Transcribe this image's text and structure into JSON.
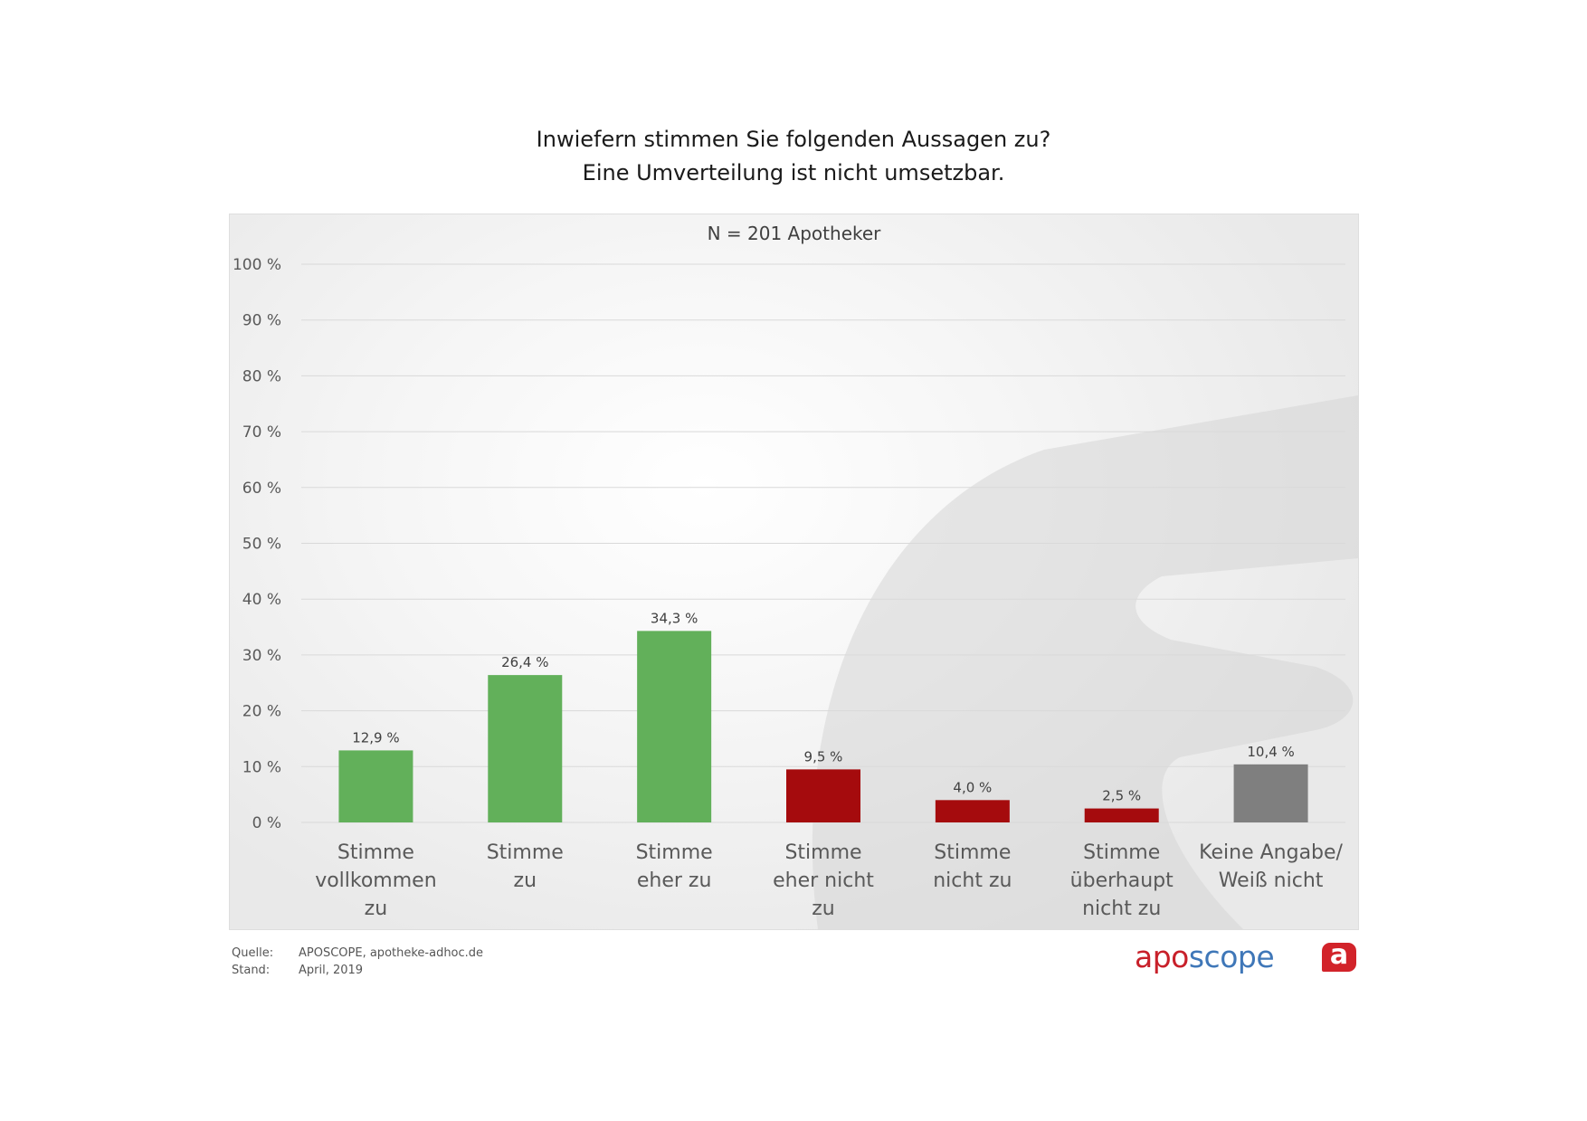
{
  "page": {
    "title_line1": "Inwiefern stimmen Sie folgenden Aussagen zu?",
    "title_line2": "Eine Umverteilung ist nicht umsetzbar.",
    "subtitle": "N = 201 Apotheker"
  },
  "footer": {
    "source_label": "Quelle:",
    "source_value": "APOSCOPE, apotheke-adhoc.de",
    "date_label": "Stand:",
    "date_value": "April, 2019"
  },
  "logo": {
    "part1": "apo",
    "part2": "scope",
    "badge": "a"
  },
  "colors": {
    "agree": "#62b05a",
    "disagree": "#a50b0d",
    "neutral": "#7f7f7f",
    "grid": "#d9d9d9"
  },
  "chart_data": {
    "type": "bar",
    "title": "Inwiefern stimmen Sie folgenden Aussagen zu? Eine Umverteilung ist nicht umsetzbar.",
    "subtitle": "N = 201 Apotheker",
    "categories": [
      [
        "Stimme",
        "vollkommen",
        "zu"
      ],
      [
        "Stimme",
        "zu"
      ],
      [
        "Stimme",
        "eher zu"
      ],
      [
        "Stimme",
        "eher nicht",
        "zu"
      ],
      [
        "Stimme",
        "nicht zu"
      ],
      [
        "Stimme",
        "überhaupt",
        "nicht zu"
      ],
      [
        "Keine Angabe/",
        "Weiß nicht"
      ]
    ],
    "values": [
      12.9,
      26.4,
      34.3,
      9.5,
      4.0,
      2.5,
      10.4
    ],
    "value_labels": [
      "12,9 %",
      "26,4 %",
      "34,3 %",
      "9,5 %",
      "4,0 %",
      "2,5 %",
      "10,4 %"
    ],
    "bar_colors": [
      "#62b05a",
      "#62b05a",
      "#62b05a",
      "#a50b0d",
      "#a50b0d",
      "#a50b0d",
      "#7f7f7f"
    ],
    "yticks": [
      "0 %",
      "10 %",
      "20 %",
      "30 %",
      "40 %",
      "50 %",
      "60 %",
      "70 %",
      "80 %",
      "90 %",
      "100 %"
    ],
    "ylim": [
      0,
      100
    ],
    "grid": true,
    "legend": "none"
  }
}
